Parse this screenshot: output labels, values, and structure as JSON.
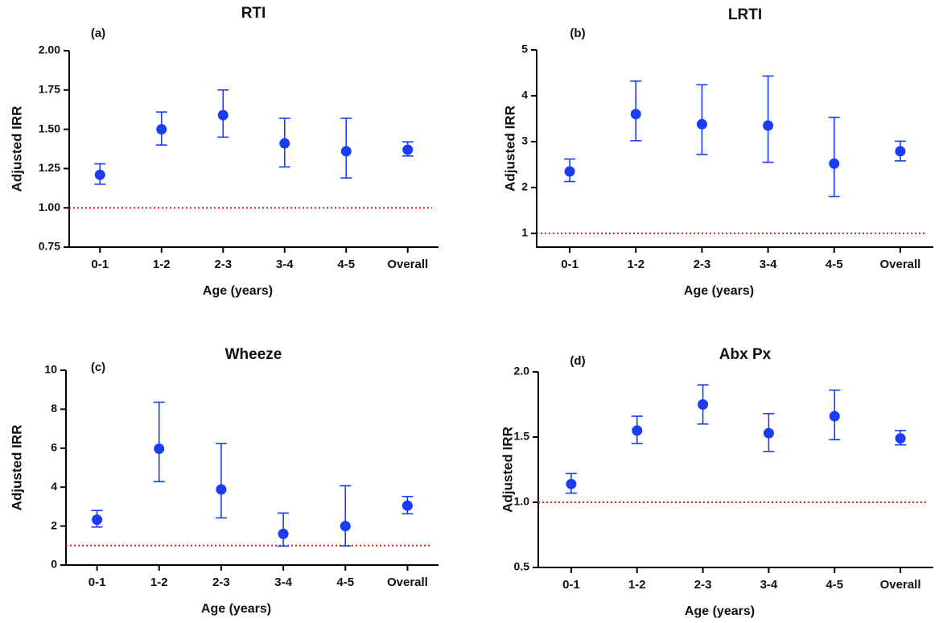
{
  "chart_data": [
    {
      "type": "point",
      "title": "RTI",
      "panel_label": "(a)",
      "xlabel": "Age (years)",
      "ylabel": "Adjusted IRR",
      "categories": [
        "0-1",
        "1-2",
        "2-3",
        "3-4",
        "4-5",
        "Overall"
      ],
      "values": [
        1.21,
        1.5,
        1.59,
        1.41,
        1.36,
        1.37
      ],
      "lower": [
        1.15,
        1.4,
        1.45,
        1.26,
        1.19,
        1.33
      ],
      "upper": [
        1.28,
        1.61,
        1.75,
        1.57,
        1.57,
        1.42
      ],
      "color": "#1a3cf5",
      "ylim": [
        0.75,
        2
      ],
      "yticks": [
        {
          "value": 0.75,
          "label": "0.75"
        },
        {
          "value": 1,
          "label": "1.00"
        },
        {
          "value": 1.25,
          "label": "1.25"
        },
        {
          "value": 1.5,
          "label": "1.50"
        },
        {
          "value": 1.75,
          "label": "1.75"
        },
        {
          "value": 2,
          "label": "2.00"
        }
      ],
      "reference_line": {
        "value": 1,
        "color": "#e02020"
      }
    },
    {
      "type": "point",
      "title": "LRTI",
      "panel_label": "(b)",
      "xlabel": "Age (years)",
      "ylabel": "Adjusted IRR",
      "categories": [
        "0-1",
        "1-2",
        "2-3",
        "3-4",
        "4-5",
        "Overall"
      ],
      "values": [
        2.35,
        3.6,
        3.38,
        3.35,
        2.52,
        2.79
      ],
      "lower": [
        2.13,
        3.02,
        2.72,
        2.55,
        1.8,
        2.58
      ],
      "upper": [
        2.62,
        4.32,
        4.24,
        4.43,
        3.53,
        3.01
      ],
      "color": "#1a3cf5",
      "ylim": [
        0.7,
        5
      ],
      "yticks": [
        1,
        2,
        3,
        4,
        5
      ],
      "reference_line": {
        "value": 1,
        "color": "#e02020"
      }
    },
    {
      "type": "point",
      "title": "Wheeze",
      "panel_label": "(c)",
      "xlabel": "Age (years)",
      "ylabel": "Adjusted IRR",
      "categories": [
        "0-1",
        "1-2",
        "2-3",
        "3-4",
        "4-5",
        "Overall"
      ],
      "values": [
        2.33,
        5.97,
        3.88,
        1.6,
        2.0,
        3.05
      ],
      "lower": [
        1.95,
        4.28,
        2.42,
        0.97,
        0.98,
        2.63
      ],
      "upper": [
        2.8,
        8.36,
        6.24,
        2.67,
        4.07,
        3.52
      ],
      "color": "#1a3cf5",
      "ylim": [
        0,
        10
      ],
      "yticks": [
        0,
        2,
        4,
        6,
        8,
        10
      ],
      "reference_line": {
        "value": 1,
        "color": "#e02020"
      }
    },
    {
      "type": "point",
      "title": "Abx Px",
      "panel_label": "(d)",
      "xlabel": "Age (years)",
      "ylabel": "Adjusted IRR",
      "categories": [
        "0-1",
        "1-2",
        "2-3",
        "3-4",
        "4-5",
        "Overall"
      ],
      "values": [
        1.14,
        1.55,
        1.75,
        1.53,
        1.66,
        1.49
      ],
      "lower": [
        1.07,
        1.45,
        1.6,
        1.39,
        1.48,
        1.44
      ],
      "upper": [
        1.22,
        1.66,
        1.9,
        1.68,
        1.86,
        1.55
      ],
      "color": "#1a3cf5",
      "ylim": [
        0.5,
        2
      ],
      "yticks": [
        0.5,
        {
          "value": 1,
          "label": "1.0"
        },
        1.5,
        {
          "value": 2,
          "label": "2.0"
        }
      ],
      "reference_line": {
        "value": 1,
        "color": "#e02020"
      }
    }
  ]
}
